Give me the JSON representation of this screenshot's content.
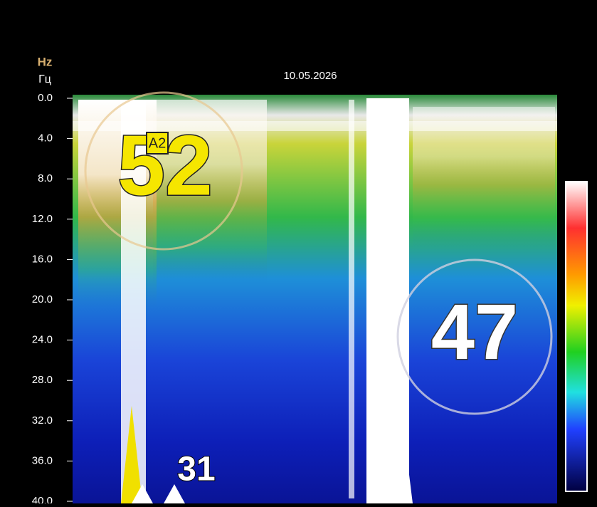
{
  "header": {
    "date": "10.05.2026",
    "unit_en": "Hz",
    "unit_ru": "Гц"
  },
  "y_axis": {
    "ticks": [
      "0.0",
      "4.0",
      "8.0",
      "12.0",
      "16.0",
      "20.0",
      "24.0",
      "28.0",
      "32.0",
      "36.0",
      "40.0"
    ]
  },
  "annotations": {
    "main_number": "52",
    "badge": "A2",
    "second_number": "47",
    "third_number": "31"
  }
}
